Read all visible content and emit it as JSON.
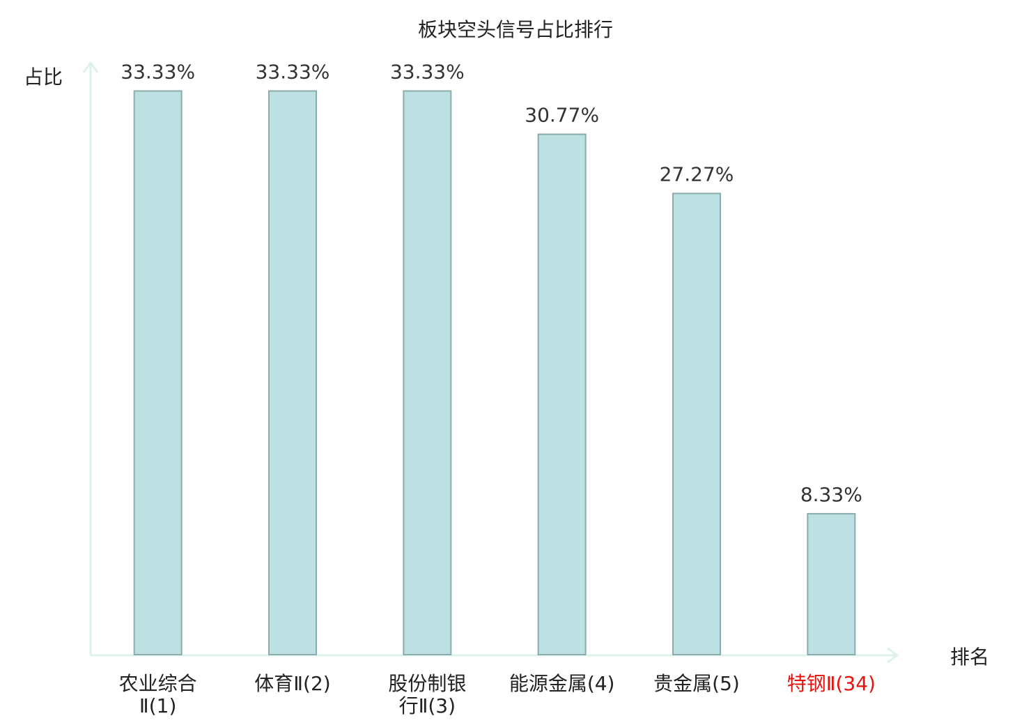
{
  "chart_data": {
    "type": "bar",
    "title": "板块空头信号占比排行",
    "y_label": "占比",
    "x_label": "排名",
    "categories": [
      "农业综合\nⅡ(1)",
      "体育Ⅱ(2)",
      "股份制银\n行Ⅱ(3)",
      "能源金属(4)",
      "贵金属(5)",
      "特钢Ⅱ(34)"
    ],
    "values": [
      33.33,
      33.33,
      33.33,
      30.77,
      27.27,
      8.33
    ],
    "value_labels": [
      "33.33%",
      "33.33%",
      "33.33%",
      "30.77%",
      "27.27%",
      "8.33%"
    ],
    "label_colors": [
      "#222222",
      "#222222",
      "#222222",
      "#222222",
      "#222222",
      "#e8120c"
    ],
    "color": "#bde0e3",
    "edge_color": "#8aacab",
    "ylim": [
      0,
      35
    ]
  }
}
